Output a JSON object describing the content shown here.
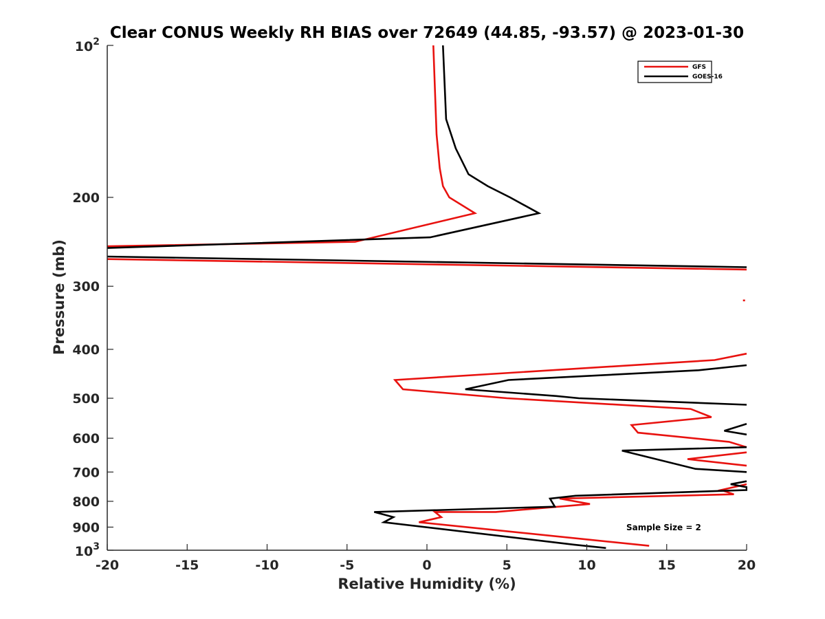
{
  "chart_data": {
    "type": "line",
    "title": "Clear CONUS Weekly RH BIAS over 72649 (44.85, -93.57) @ 2023-01-30",
    "xlabel": "Relative Humidity (%)",
    "ylabel": "Pressure (mb)",
    "xlim": [
      -20,
      20
    ],
    "ylim": [
      100,
      1000
    ],
    "yscale": "log",
    "y_reversed": true,
    "grid": false,
    "legend_position": "top-right",
    "x_ticks": [
      "-20",
      "-15",
      "-10",
      "-5",
      "0",
      "5",
      "10",
      "15",
      "20"
    ],
    "y_ticks": [
      {
        "value": 100,
        "base": "10",
        "exp": "2"
      },
      {
        "value": 200,
        "label": "200"
      },
      {
        "value": 300,
        "label": "300"
      },
      {
        "value": 400,
        "label": "400"
      },
      {
        "value": 500,
        "label": "500"
      },
      {
        "value": 600,
        "label": "600"
      },
      {
        "value": 700,
        "label": "700"
      },
      {
        "value": 800,
        "label": "800"
      },
      {
        "value": 900,
        "label": "900"
      },
      {
        "value": 1000,
        "base": "10",
        "exp": "3"
      }
    ],
    "annotation": "Sample Size = 2",
    "series": [
      {
        "name": "GFS",
        "color": "#e8120f",
        "points": [
          [
            0.4,
            100
          ],
          [
            0.6,
            150
          ],
          [
            0.8,
            175
          ],
          [
            1.0,
            190
          ],
          [
            1.4,
            200
          ],
          [
            3.0,
            215
          ],
          [
            -4.5,
            245
          ],
          [
            -20,
            250
          ],
          null,
          [
            -20,
            265
          ],
          [
            20,
            278
          ],
          null,
          [
            19.9,
            320
          ],
          null,
          [
            20,
            408
          ],
          [
            18.0,
            420
          ],
          [
            -2.0,
            460
          ],
          [
            -1.5,
            480
          ],
          [
            5.0,
            500
          ],
          [
            16.5,
            525
          ],
          [
            17.8,
            545
          ],
          [
            12.8,
            565
          ],
          [
            13.2,
            585
          ],
          [
            18.9,
            610
          ],
          [
            20,
            625
          ],
          null,
          [
            20,
            640
          ],
          [
            16.3,
            660
          ],
          [
            20,
            680
          ],
          null,
          [
            20,
            740
          ],
          [
            18.4,
            760
          ],
          [
            19.2,
            775
          ],
          [
            8.3,
            790
          ],
          [
            10.2,
            810
          ],
          [
            4.3,
            840
          ],
          [
            0.5,
            840
          ],
          [
            0.9,
            860
          ],
          [
            -0.5,
            880
          ],
          [
            13.9,
            980
          ]
        ]
      },
      {
        "name": "GOES-16",
        "color": "#000000",
        "points": [
          [
            1.0,
            100
          ],
          [
            1.2,
            140
          ],
          [
            1.8,
            160
          ],
          [
            2.6,
            180
          ],
          [
            3.8,
            190
          ],
          [
            5.2,
            200
          ],
          [
            7.0,
            215
          ],
          [
            0.2,
            240
          ],
          [
            -20,
            252
          ],
          null,
          [
            -20,
            262
          ],
          [
            20,
            275
          ],
          null,
          [
            20,
            430
          ],
          [
            17.0,
            440
          ],
          [
            5.1,
            460
          ],
          [
            2.4,
            480
          ],
          [
            8.1,
            495
          ],
          [
            9.5,
            500
          ],
          [
            20,
            515
          ],
          null,
          [
            20,
            562
          ],
          [
            18.6,
            580
          ],
          [
            20,
            590
          ],
          null,
          [
            20,
            625
          ],
          [
            12.2,
            635
          ],
          [
            16.8,
            690
          ],
          [
            20,
            700
          ],
          null,
          [
            20,
            730
          ],
          [
            19.0,
            740
          ],
          [
            20,
            750
          ],
          [
            20,
            760
          ],
          [
            9.3,
            780
          ],
          [
            7.7,
            790
          ],
          [
            8.0,
            820
          ],
          [
            -3.3,
            840
          ],
          [
            -2.1,
            860
          ],
          [
            -2.7,
            880
          ],
          [
            9.2,
            975
          ],
          [
            11.2,
            990
          ]
        ]
      }
    ]
  }
}
